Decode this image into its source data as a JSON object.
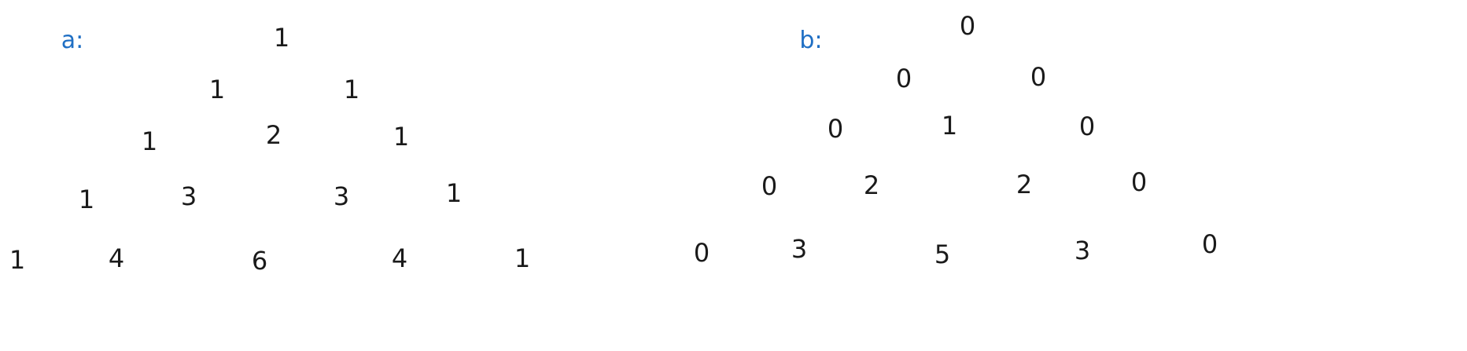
{
  "colors": {
    "label": "#1f6fc4",
    "number": "#1a1a1a",
    "background": "#ffffff"
  },
  "triangles": [
    {
      "label": "a:",
      "rows": [
        [
          "1"
        ],
        [
          "1",
          "1"
        ],
        [
          "1",
          "2",
          "1"
        ],
        [
          "1",
          "3",
          "3",
          "1"
        ],
        [
          "1",
          "4",
          "6",
          "4",
          "1"
        ]
      ]
    },
    {
      "label": "b:",
      "rows": [
        [
          "0"
        ],
        [
          "0",
          "0"
        ],
        [
          "0",
          "1",
          "0"
        ],
        [
          "0",
          "2",
          "2",
          "0"
        ],
        [
          "0",
          "3",
          "5",
          "3",
          "0"
        ]
      ]
    }
  ]
}
